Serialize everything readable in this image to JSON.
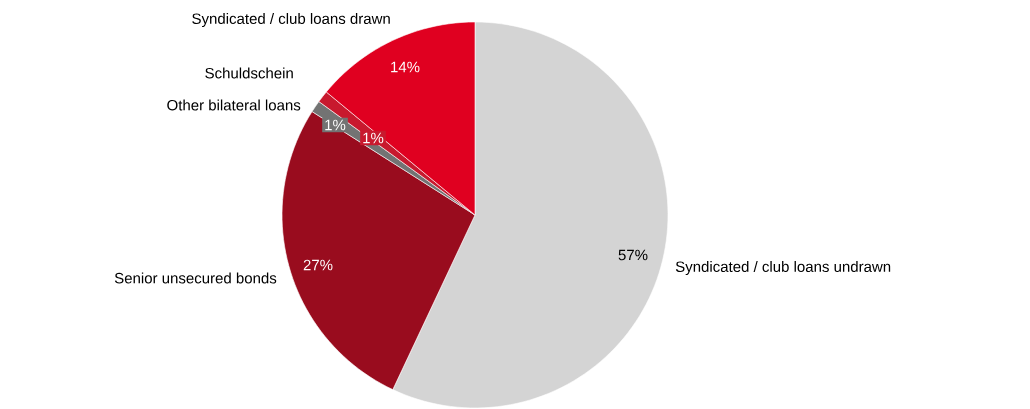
{
  "chart_data": {
    "type": "pie",
    "categories": [
      "Syndicated / club loans undrawn",
      "Senior unsecured bonds",
      "Other bilateral loans",
      "Schuldschein",
      "Syndicated / club loans drawn"
    ],
    "values": [
      57,
      27,
      1,
      1,
      14
    ],
    "value_labels": [
      "57%",
      "27%",
      "1%",
      "1%",
      "14%"
    ],
    "colors": [
      "#d4d4d4",
      "#990c1e",
      "#737373",
      "#c8192e",
      "#e00020"
    ]
  }
}
